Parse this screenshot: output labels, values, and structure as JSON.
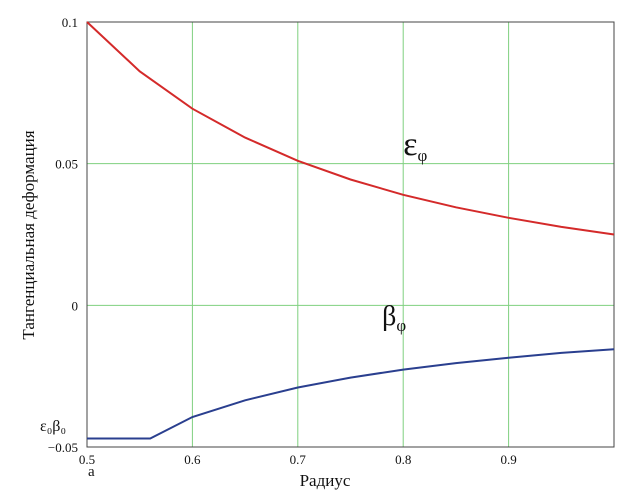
{
  "chart_data": {
    "type": "line",
    "title": "",
    "xlabel": "Радиус",
    "ylabel": "Тангенциальная деформация",
    "xlim": [
      0.5,
      1.0
    ],
    "ylim": [
      -0.05,
      0.1
    ],
    "grid": true,
    "x_ticks": [
      "0.5",
      "0.6",
      "0.7",
      "0.8",
      "0.9"
    ],
    "y_ticks": [
      "0.1",
      "0.05",
      "0",
      "−0.05"
    ],
    "x_tick_values": [
      0.5,
      0.6,
      0.7,
      0.8,
      0.9
    ],
    "y_tick_values": [
      0.1,
      0.05,
      0,
      -0.05
    ],
    "corner_label_x": "a",
    "corner_label_y": "ε₀β₀",
    "series": [
      {
        "name": "ε",
        "subscript": "φ",
        "color": "#d42a2a",
        "x": [
          0.5,
          0.55,
          0.6,
          0.65,
          0.7,
          0.75,
          0.8,
          0.85,
          0.9,
          0.95,
          1.0
        ],
        "y": [
          0.1,
          0.0826,
          0.0694,
          0.0592,
          0.051,
          0.0444,
          0.039,
          0.0346,
          0.0309,
          0.0277,
          0.025
        ]
      },
      {
        "name": "β",
        "subscript": "φ",
        "color": "#2a3f8f",
        "x": [
          0.5,
          0.56,
          0.6,
          0.65,
          0.7,
          0.75,
          0.8,
          0.85,
          0.9,
          0.95,
          1.0
        ],
        "y": [
          -0.047,
          -0.047,
          -0.0394,
          -0.0335,
          -0.029,
          -0.0255,
          -0.0227,
          -0.0204,
          -0.0185,
          -0.0168,
          -0.0155
        ]
      }
    ],
    "annotations": [
      {
        "series": 0,
        "text": "ε",
        "sub": "φ",
        "x": 0.8,
        "y": 0.053
      },
      {
        "series": 1,
        "text": "β",
        "sub": "φ",
        "x": 0.78,
        "y": -0.007
      }
    ]
  }
}
